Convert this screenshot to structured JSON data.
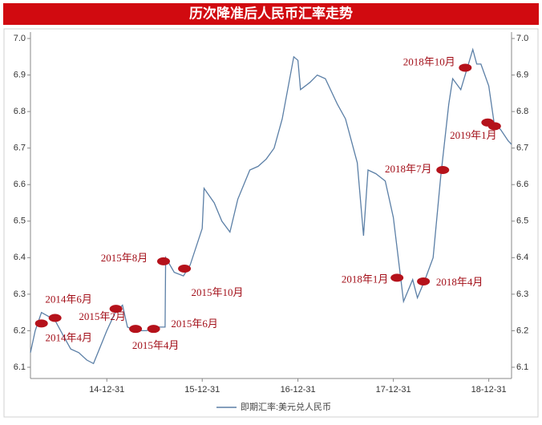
{
  "chart_data": {
    "type": "line",
    "title": "历次降准后人民币汇率走势",
    "x": [
      "2014-03-14",
      "2014-04-01",
      "2014-04-25",
      "2014-05-20",
      "2014-06-15",
      "2014-07-15",
      "2014-08-15",
      "2014-09-15",
      "2014-10-15",
      "2014-11-10",
      "2014-12-31",
      "2015-02-01",
      "2015-03-01",
      "2015-03-20",
      "2015-04-20",
      "2015-06-01",
      "2015-07-15",
      "2015-08-11",
      "2015-08-13",
      "2015-09-15",
      "2015-10-20",
      "2015-11-15",
      "2015-12-31",
      "2016-01-07",
      "2016-02-15",
      "2016-03-15",
      "2016-04-15",
      "2016-05-15",
      "2016-06-30",
      "2016-08-01",
      "2016-09-01",
      "2016-10-01",
      "2016-11-01",
      "2016-12-15",
      "2016-12-31",
      "2017-01-10",
      "2017-02-15",
      "2017-03-15",
      "2017-04-15",
      "2017-05-31",
      "2017-07-01",
      "2017-08-15",
      "2017-09-08",
      "2017-09-25",
      "2017-10-25",
      "2017-11-30",
      "2017-12-31",
      "2018-02-08",
      "2018-03-15",
      "2018-04-02",
      "2018-05-01",
      "2018-06-01",
      "2018-06-30",
      "2018-07-31",
      "2018-08-15",
      "2018-09-15",
      "2018-10-31",
      "2018-11-15",
      "2018-12-01",
      "2018-12-31",
      "2019-01-20",
      "2019-02-15",
      "2019-03-15",
      "2019-03-28"
    ],
    "series": [
      {
        "name": "即期汇率:美元兑人民币",
        "color": "#5b7fa6",
        "values": [
          6.14,
          6.2,
          6.25,
          6.24,
          6.23,
          6.19,
          6.15,
          6.14,
          6.12,
          6.11,
          6.2,
          6.25,
          6.27,
          6.21,
          6.2,
          6.2,
          6.21,
          6.21,
          6.4,
          6.36,
          6.35,
          6.38,
          6.48,
          6.59,
          6.55,
          6.5,
          6.47,
          6.56,
          6.64,
          6.65,
          6.67,
          6.7,
          6.78,
          6.95,
          6.94,
          6.86,
          6.88,
          6.9,
          6.89,
          6.82,
          6.78,
          6.66,
          6.46,
          6.64,
          6.63,
          6.61,
          6.51,
          6.28,
          6.34,
          6.29,
          6.34,
          6.4,
          6.62,
          6.82,
          6.89,
          6.86,
          6.97,
          6.93,
          6.93,
          6.87,
          6.77,
          6.75,
          6.72,
          6.71
        ]
      }
    ],
    "xlim": [
      "2014-03-14",
      "2019-03-28"
    ],
    "xticks": [
      {
        "value": "2014-12-31",
        "label": "14-12-31"
      },
      {
        "value": "2015-12-31",
        "label": "15-12-31"
      },
      {
        "value": "2016-12-31",
        "label": "16-12-31"
      },
      {
        "value": "2017-12-31",
        "label": "17-12-31"
      },
      {
        "value": "2018-12-31",
        "label": "18-12-31"
      }
    ],
    "ylim": [
      6.1,
      7
    ],
    "yticks": [
      6.1,
      6.2,
      6.3,
      6.4,
      6.5,
      6.6,
      6.7,
      6.8,
      6.9,
      {
        "value": 7,
        "label": "7.0"
      }
    ],
    "annotations": [
      {
        "label": "2014年4月",
        "points": [
          {
            "x": "2014-04-25",
            "y": 6.22
          }
        ]
      },
      {
        "label": "2014年6月",
        "points": [
          {
            "x": "2014-06-16",
            "y": 6.235
          }
        ]
      },
      {
        "label": "2015年2月",
        "points": [
          {
            "x": "2015-02-04",
            "y": 6.26
          }
        ]
      },
      {
        "label": "2015年4月",
        "points": [
          {
            "x": "2015-04-20",
            "y": 6.205
          }
        ]
      },
      {
        "label": "2015年6月",
        "points": [
          {
            "x": "2015-06-28",
            "y": 6.205
          }
        ]
      },
      {
        "label": "2015年8月",
        "points": [
          {
            "x": "2015-08-05",
            "y": 6.39
          }
        ]
      },
      {
        "label": "2015年10月",
        "points": [
          {
            "x": "2015-10-24",
            "y": 6.37
          }
        ]
      },
      {
        "label": "2018年1月",
        "points": [
          {
            "x": "2018-01-14",
            "y": 6.345
          }
        ]
      },
      {
        "label": "2018年4月",
        "points": [
          {
            "x": "2018-04-25",
            "y": 6.335
          }
        ]
      },
      {
        "label": "2018年7月",
        "points": [
          {
            "x": "2018-07-08",
            "y": 6.64
          }
        ]
      },
      {
        "label": "2018年10月",
        "points": [
          {
            "x": "2018-10-02",
            "y": 6.92
          }
        ]
      },
      {
        "label": "2019年1月",
        "points": [
          {
            "x": "2018-12-27",
            "y": 6.77
          },
          {
            "x": "2019-01-22",
            "y": 6.76
          }
        ]
      }
    ]
  }
}
